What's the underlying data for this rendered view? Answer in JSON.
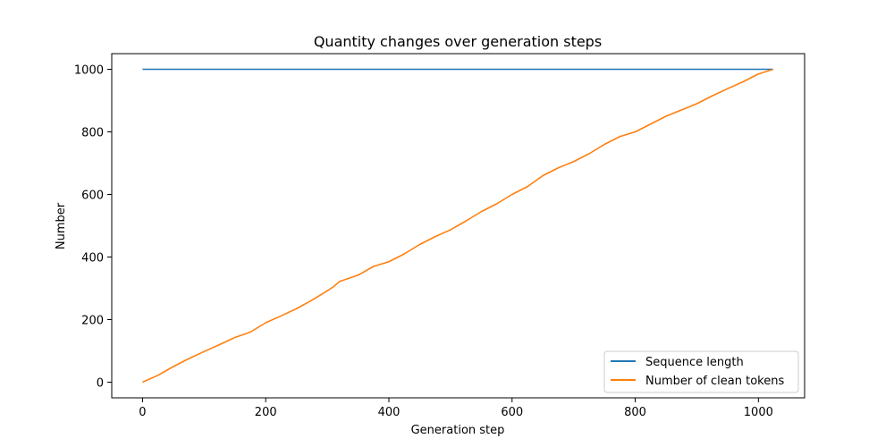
{
  "chart_data": {
    "type": "line",
    "title": "Quantity changes over generation steps",
    "xlabel": "Generation step",
    "ylabel": "Number",
    "xlim": [
      -50,
      1075
    ],
    "ylim": [
      -50,
      1050
    ],
    "xticks": [
      0,
      200,
      400,
      600,
      800,
      1000
    ],
    "yticks": [
      0,
      200,
      400,
      600,
      800,
      1000
    ],
    "grid": false,
    "legend_position": "lower-right",
    "series": [
      {
        "name": "Sequence length",
        "color": "#1f77b4",
        "x": [
          0,
          1024
        ],
        "y": [
          1000,
          1000
        ]
      },
      {
        "name": "Number of clean tokens",
        "color": "#ff7f0e",
        "x": [
          0,
          25,
          50,
          75,
          100,
          125,
          150,
          175,
          200,
          225,
          250,
          275,
          300,
          310,
          320,
          350,
          375,
          400,
          425,
          450,
          475,
          500,
          525,
          550,
          575,
          600,
          625,
          650,
          675,
          700,
          725,
          750,
          775,
          800,
          825,
          850,
          875,
          900,
          925,
          950,
          975,
          1000,
          1024
        ],
        "y": [
          0,
          22,
          50,
          75,
          98,
          120,
          143,
          160,
          190,
          212,
          235,
          262,
          292,
          305,
          322,
          342,
          370,
          385,
          410,
          440,
          465,
          487,
          515,
          545,
          570,
          600,
          625,
          660,
          685,
          705,
          730,
          760,
          785,
          800,
          825,
          850,
          870,
          890,
          915,
          938,
          960,
          985,
          1000
        ]
      }
    ]
  }
}
